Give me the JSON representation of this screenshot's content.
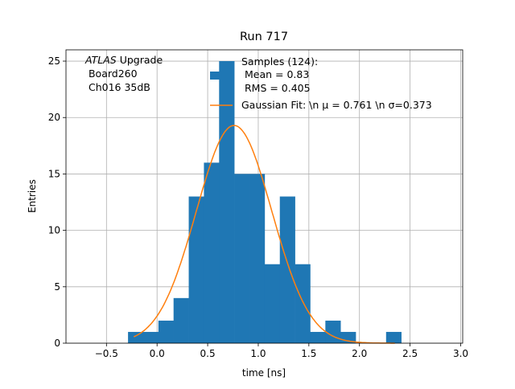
{
  "chart_data": {
    "type": "bar",
    "title": "Run 717",
    "xlabel": "time [ns]",
    "ylabel": "Entries",
    "xlim": [
      -0.9,
      3.02
    ],
    "ylim": [
      0,
      26
    ],
    "grid": true,
    "x_ticks": [
      "-0.5",
      "0.0",
      "0.5",
      "1.0",
      "1.5",
      "2.0",
      "2.5",
      "3.0"
    ],
    "y_ticks": [
      "0",
      "5",
      "10",
      "15",
      "20",
      "25"
    ],
    "bin_edges": [
      -0.287,
      -0.137,
      0.013,
      0.163,
      0.313,
      0.463,
      0.613,
      0.763,
      0.913,
      1.063,
      1.213,
      1.363,
      1.513,
      1.663,
      1.813,
      1.963,
      2.113,
      2.263,
      2.413
    ],
    "counts": [
      1,
      1,
      2,
      4,
      13,
      16,
      25,
      15,
      15,
      7,
      13,
      7,
      1,
      2,
      1,
      0,
      0,
      1
    ],
    "fit": {
      "type": "gaussian",
      "mu": 0.761,
      "sigma": 0.373,
      "amplitude": 19.3,
      "x_range": [
        -0.23,
        2.35
      ]
    },
    "annotation": {
      "italic": "ATLAS",
      "lines": [
        " Upgrade",
        " Board260",
        " Ch016 35dB"
      ]
    },
    "legend": {
      "placement": "top-right",
      "hist_label": [
        "Samples (124):",
        " Mean = 0.83",
        " RMS = 0.405"
      ],
      "fit_label": "Gaussian Fit: \\n μ = 0.761 \\n σ=0.373"
    },
    "colors": {
      "bars": "#1f77b4",
      "fit": "#ff7f0e",
      "grid": "#b0b0b0"
    }
  }
}
